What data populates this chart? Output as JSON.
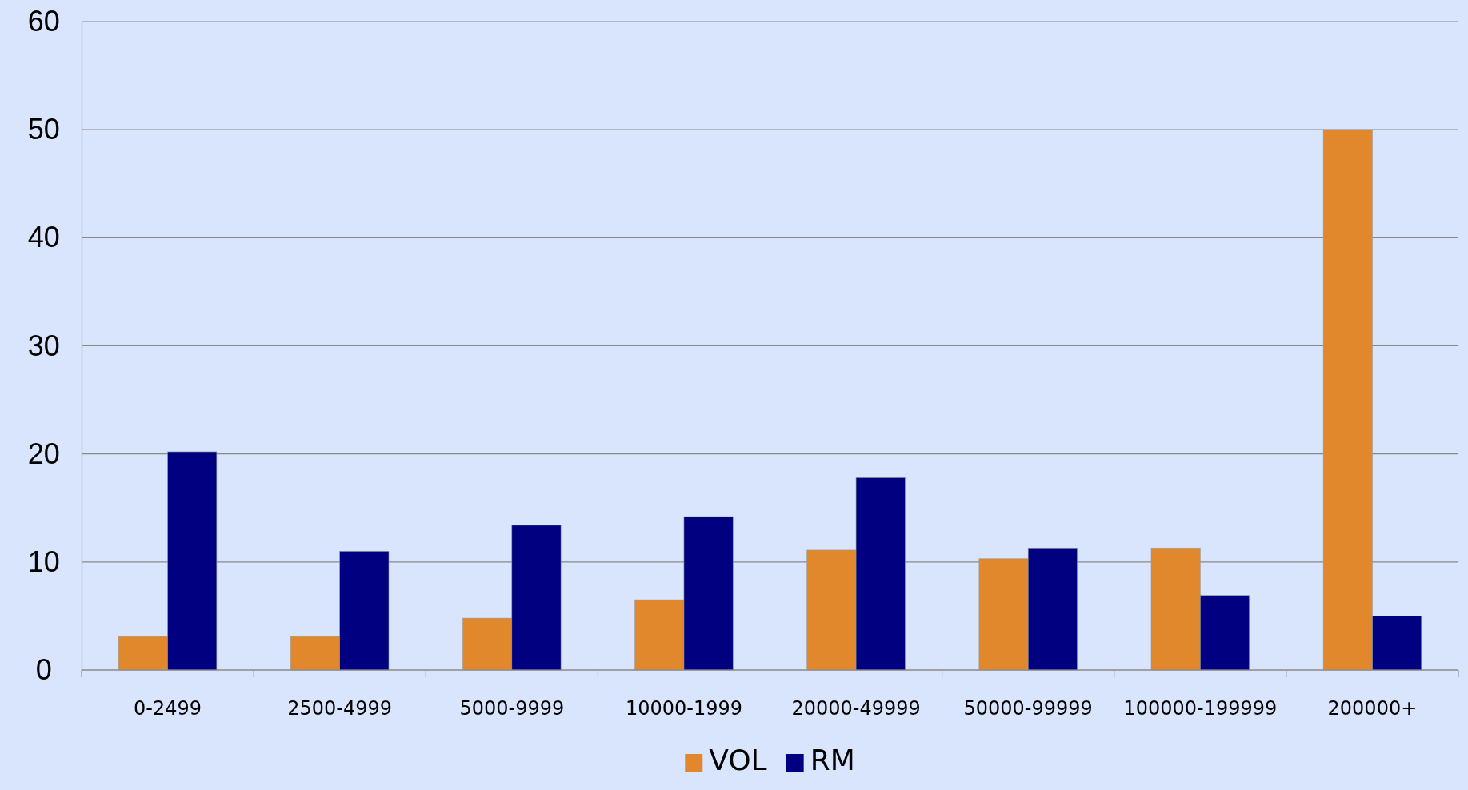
{
  "chart_data": {
    "type": "bar",
    "categories": [
      "0-2499",
      "2500-4999",
      "5000-9999",
      "10000-1999",
      "20000-49999",
      "50000-99999",
      "100000-199999",
      "200000+"
    ],
    "series": [
      {
        "name": "VOL",
        "color": "#e2882c",
        "values": [
          3.1,
          3.1,
          4.8,
          6.5,
          11.1,
          10.3,
          11.3,
          50
        ]
      },
      {
        "name": "RM",
        "color": "#000080",
        "values": [
          20.2,
          11.0,
          13.4,
          14.2,
          17.8,
          11.3,
          6.9,
          5.0
        ]
      }
    ],
    "ylim": [
      0,
      60
    ],
    "yticks": [
      0,
      10,
      20,
      30,
      40,
      50,
      60
    ],
    "grid": "y",
    "legend": "bottom"
  }
}
